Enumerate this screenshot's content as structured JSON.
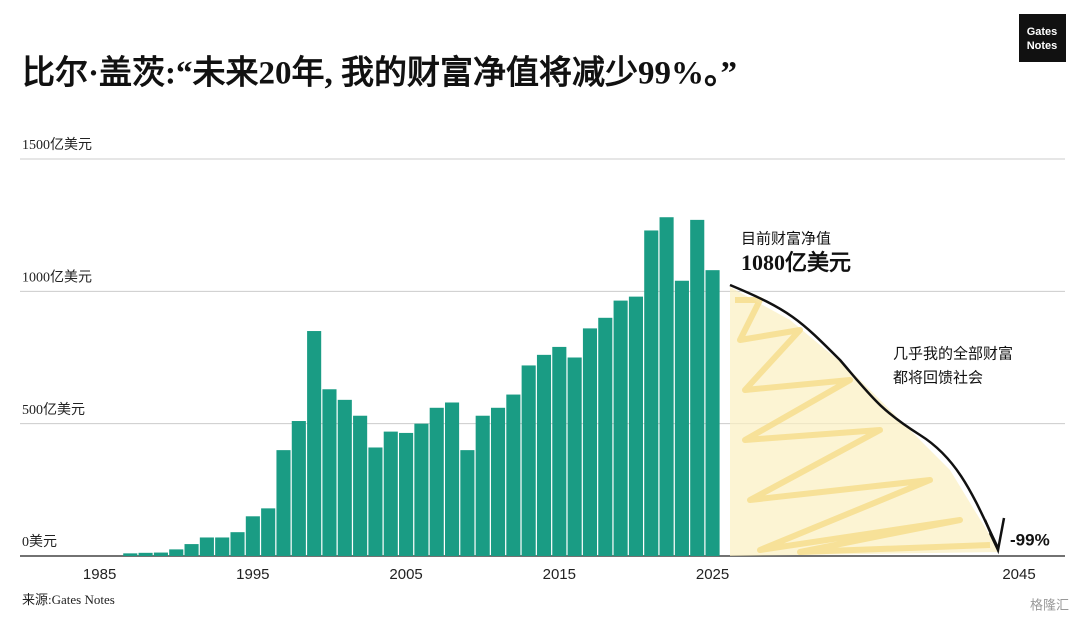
{
  "chart_data": {
    "type": "bar",
    "title": "比尔·盖茨:“未来20年, 我的财富净值将减少99%。”",
    "x": [
      1987,
      1988,
      1989,
      1990,
      1991,
      1992,
      1993,
      1994,
      1995,
      1996,
      1997,
      1998,
      1999,
      2000,
      2001,
      2002,
      2003,
      2004,
      2005,
      2006,
      2007,
      2008,
      2009,
      2010,
      2011,
      2012,
      2013,
      2014,
      2015,
      2016,
      2017,
      2018,
      2019,
      2020,
      2021,
      2022,
      2023,
      2024,
      2025
    ],
    "values": [
      10,
      12,
      13,
      25,
      45,
      70,
      70,
      90,
      150,
      180,
      400,
      510,
      850,
      630,
      590,
      530,
      410,
      470,
      465,
      500,
      560,
      580,
      400,
      530,
      560,
      610,
      720,
      760,
      790,
      750,
      860,
      900,
      965,
      980,
      1230,
      1280,
      1040,
      1270,
      1080
    ],
    "color": "#1a9c84",
    "xlim": [
      1980,
      2048
    ],
    "xticks": [
      1985,
      1995,
      2005,
      2015,
      2025,
      2045
    ],
    "ylim": [
      0,
      1500
    ],
    "yticks": [
      {
        "value": 0,
        "label": "0美元"
      },
      {
        "value": 500,
        "label": "500亿美元"
      },
      {
        "value": 1000,
        "label": "1000亿美元"
      },
      {
        "value": 1500,
        "label": "1500亿美元"
      }
    ],
    "grid": true,
    "annotations": [
      "目前财富净值",
      "1080亿美元",
      "几乎我的全部财富",
      "都将回馈社会",
      "-99%"
    ],
    "source": "来源:Gates Notes",
    "logo": [
      "Gates",
      "Notes"
    ],
    "watermark": "格隆汇"
  }
}
